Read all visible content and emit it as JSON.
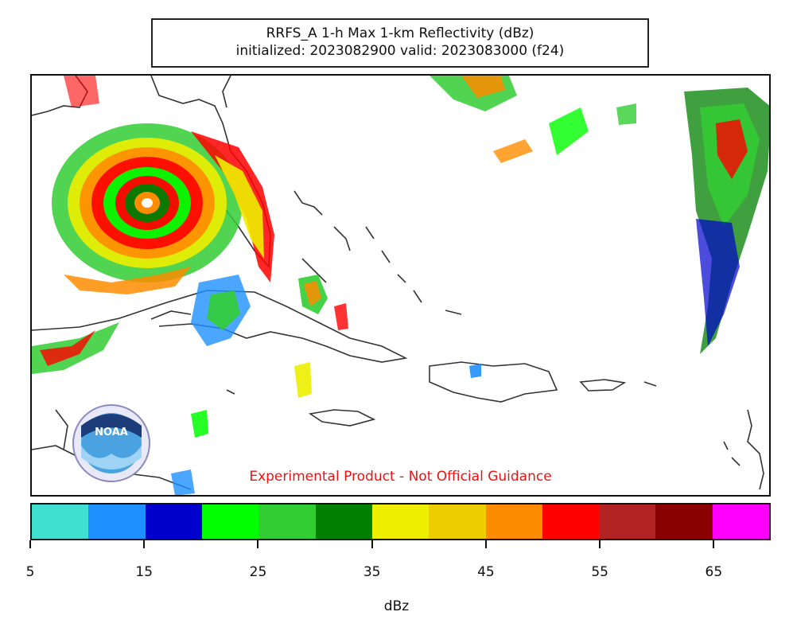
{
  "title": {
    "line1": "RRFS_A 1-h Max 1-km Reflectivity (dBz)",
    "line2": "initialized: 2023082900 valid: 2023083000 (f24)"
  },
  "disclaimer": "Experimental Product - Not Official Guidance",
  "logo": {
    "text": "NOAA"
  },
  "colorbar": {
    "label": "dBz",
    "ticks": [
      "5",
      "15",
      "25",
      "35",
      "45",
      "55",
      "65"
    ],
    "colors": [
      "#40e0d0",
      "#1e90ff",
      "#0000cd",
      "#00ff00",
      "#32cd32",
      "#008000",
      "#eeee00",
      "#eecd00",
      "#ff8c00",
      "#ff0000",
      "#b22222",
      "#8b0000",
      "#ff00ff"
    ]
  }
}
